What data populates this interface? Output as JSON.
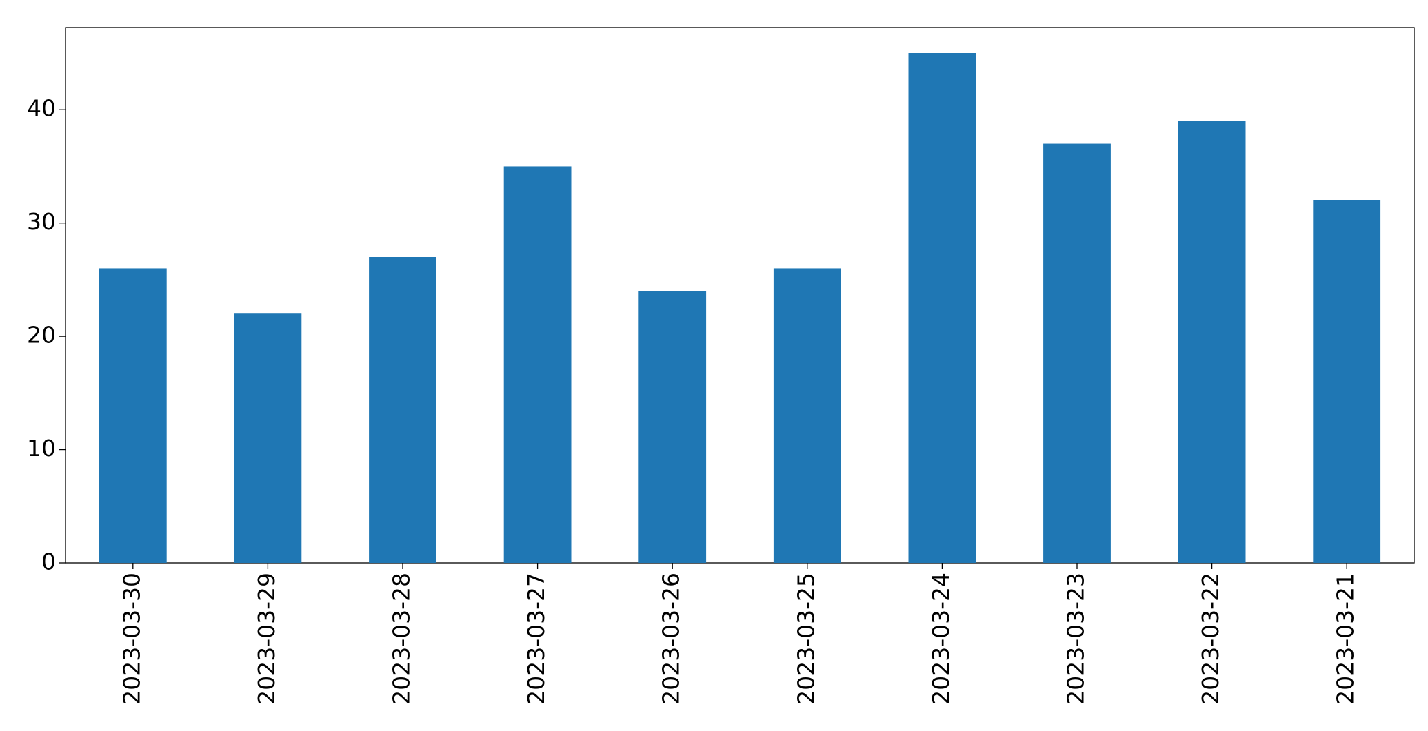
{
  "chart_data": {
    "type": "bar",
    "categories": [
      "2023-03-30",
      "2023-03-29",
      "2023-03-28",
      "2023-03-27",
      "2023-03-26",
      "2023-03-25",
      "2023-03-24",
      "2023-03-23",
      "2023-03-22",
      "2023-03-21"
    ],
    "values": [
      26,
      22,
      27,
      35,
      24,
      26,
      45,
      37,
      39,
      32
    ],
    "color": "#1f77b4",
    "ylim": [
      0,
      47.25
    ],
    "yticks": [
      0,
      10,
      20,
      30,
      40
    ],
    "grid": false
  }
}
